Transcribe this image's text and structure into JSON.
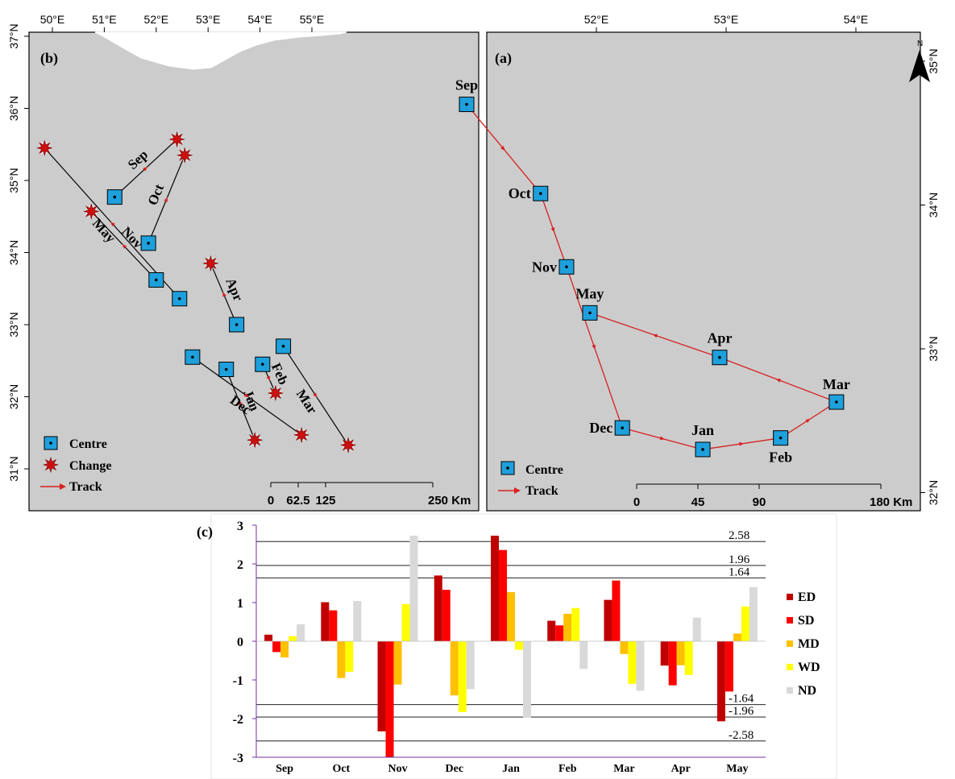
{
  "panel_b": {
    "label": "(b)",
    "lon_ticks": [
      "50°E",
      "51°E",
      "52°E",
      "53°E",
      "54°E",
      "55°E"
    ],
    "lat_ticks": [
      "37°N",
      "36°N",
      "35°N",
      "34°N",
      "33°N",
      "32°N",
      "31°N"
    ],
    "tracks": [
      {
        "month": "May",
        "centre": [
          52.45,
          33.36
        ],
        "change": [
          49.85,
          35.45
        ]
      },
      {
        "month": "Sep",
        "centre": [
          51.2,
          34.77
        ],
        "change": [
          52.4,
          35.57
        ]
      },
      {
        "month": "Oct",
        "centre": [
          51.85,
          34.13
        ],
        "change": [
          52.55,
          35.35
        ]
      },
      {
        "month": "Nov",
        "centre": [
          52.0,
          33.62
        ],
        "change": [
          50.75,
          34.57
        ]
      },
      {
        "month": "Apr",
        "centre": [
          53.55,
          33.0
        ],
        "change": [
          53.05,
          33.85
        ]
      },
      {
        "month": "Jan",
        "centre": [
          53.35,
          32.38
        ],
        "change": [
          53.9,
          31.4
        ]
      },
      {
        "month": "Dec",
        "centre": [
          52.7,
          32.55
        ],
        "change": [
          54.8,
          31.47
        ]
      },
      {
        "month": "Feb",
        "centre": [
          54.05,
          32.45
        ],
        "change": [
          54.3,
          32.05
        ]
      },
      {
        "month": "Mar",
        "centre": [
          54.45,
          32.7
        ],
        "change": [
          55.7,
          31.33
        ]
      }
    ],
    "legend": {
      "centre": "Centre",
      "change": "Change",
      "track": "Track"
    },
    "scale": {
      "ticks": [
        "0",
        "62.5",
        "125",
        "250 Km"
      ]
    }
  },
  "panel_a": {
    "label": "(a)",
    "lon_ticks": [
      "52°E",
      "53°E",
      "54°E"
    ],
    "lat_ticks": [
      "35°N",
      "34°N",
      "33°N",
      "32°N"
    ],
    "north": "N",
    "points": [
      {
        "month": "Sep",
        "lon": 51.0,
        "lat": 34.7
      },
      {
        "month": "Oct",
        "lon": 51.57,
        "lat": 34.08
      },
      {
        "month": "Nov",
        "lon": 51.77,
        "lat": 33.57
      },
      {
        "month": "Dec",
        "lon": 52.2,
        "lat": 32.45
      },
      {
        "month": "Jan",
        "lon": 52.82,
        "lat": 32.3
      },
      {
        "month": "Feb",
        "lon": 53.42,
        "lat": 32.38
      },
      {
        "month": "Mar",
        "lon": 53.85,
        "lat": 32.63
      },
      {
        "month": "Apr",
        "lon": 52.95,
        "lat": 32.94
      },
      {
        "month": "May",
        "lon": 51.95,
        "lat": 33.25
      }
    ],
    "legend": {
      "centre": "Centre",
      "track": "Track"
    },
    "scale": {
      "ticks": [
        "0",
        "45",
        "90",
        "180 Km"
      ]
    }
  },
  "chart_data": {
    "type": "bar",
    "label": "(c)",
    "categories": [
      "Sep",
      "Oct",
      "Nov",
      "Dec",
      "Jan",
      "Feb",
      "Mar",
      "Apr",
      "May"
    ],
    "series": [
      {
        "name": "ED",
        "color": "#c00000",
        "values": [
          0.17,
          1.01,
          -2.33,
          1.7,
          2.73,
          0.53,
          1.07,
          -0.63,
          -2.07
        ]
      },
      {
        "name": "SD",
        "color": "#ff0000",
        "values": [
          -0.28,
          0.8,
          -3.0,
          1.33,
          2.36,
          0.41,
          1.57,
          -1.14,
          -1.3
        ]
      },
      {
        "name": "MD",
        "color": "#ffc000",
        "values": [
          -0.42,
          -0.95,
          -1.12,
          -1.4,
          1.27,
          0.71,
          -0.33,
          -0.62,
          0.2
        ]
      },
      {
        "name": "WD",
        "color": "#ffff00",
        "values": [
          0.13,
          -0.79,
          0.96,
          -1.83,
          -0.22,
          0.86,
          -1.1,
          -0.87,
          0.9
        ]
      },
      {
        "name": "ND",
        "color": "#d9d9d9",
        "values": [
          0.44,
          1.04,
          2.73,
          -1.24,
          -1.98,
          -0.72,
          -1.28,
          0.61,
          1.4
        ]
      }
    ],
    "yticks": [
      "3",
      "2",
      "1",
      "0",
      "-1",
      "-2",
      "-3"
    ],
    "ylim": [
      -3,
      3
    ],
    "thresholds": [
      {
        "value": 2.58,
        "label": "2.58"
      },
      {
        "value": 1.96,
        "label": "1.96"
      },
      {
        "value": 1.64,
        "label": "1.64"
      },
      {
        "value": -1.64,
        "label": "-1.64"
      },
      {
        "value": -1.96,
        "label": "-1.96"
      },
      {
        "value": -2.58,
        "label": "-2.58"
      }
    ],
    "legend_position": "right"
  },
  "colors": {
    "map_fill": "#cccccc",
    "centre": "#1ea0dc",
    "change": "#cc1010",
    "track": "#d82020"
  }
}
